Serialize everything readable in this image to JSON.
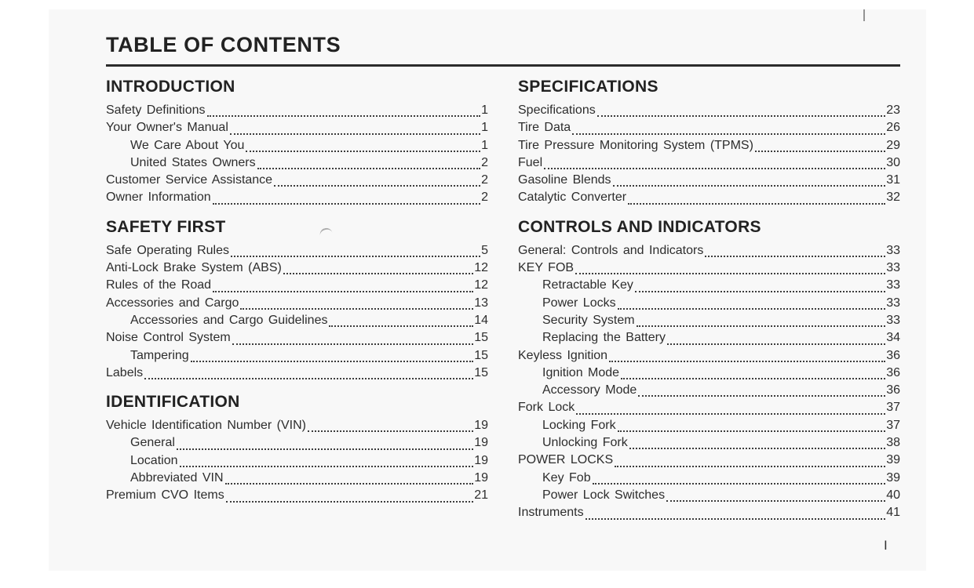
{
  "colors": {
    "paper": "#f8f8f8",
    "ink": "#262626",
    "rule": "#2b2b2b"
  },
  "page": {
    "title": "TABLE OF CONTENTS",
    "folio": "I"
  },
  "columns": [
    {
      "sections": [
        {
          "heading": "INTRODUCTION",
          "entries": [
            {
              "label": "Safety Definitions",
              "page": "1",
              "indent": 0
            },
            {
              "label": "Your Owner's Manual",
              "page": "1",
              "indent": 0
            },
            {
              "label": "We Care About You",
              "page": "1",
              "indent": 1
            },
            {
              "label": "United States Owners",
              "page": "2",
              "indent": 1
            },
            {
              "label": "Customer Service Assistance",
              "page": "2",
              "indent": 0
            },
            {
              "label": "Owner Information",
              "page": "2",
              "indent": 0
            }
          ]
        },
        {
          "heading": "SAFETY FIRST",
          "entries": [
            {
              "label": "Safe Operating Rules",
              "page": "5",
              "indent": 0
            },
            {
              "label": "Anti-Lock Brake System (ABS)",
              "page": "12",
              "indent": 0
            },
            {
              "label": "Rules of the Road",
              "page": "12",
              "indent": 0
            },
            {
              "label": "Accessories and Cargo",
              "page": "13",
              "indent": 0
            },
            {
              "label": "Accessories and Cargo Guidelines",
              "page": "14",
              "indent": 1
            },
            {
              "label": "Noise Control System",
              "page": "15",
              "indent": 0
            },
            {
              "label": "Tampering",
              "page": "15",
              "indent": 1
            },
            {
              "label": "Labels",
              "page": "15",
              "indent": 0
            }
          ]
        },
        {
          "heading": "IDENTIFICATION",
          "entries": [
            {
              "label": "Vehicle Identification Number (VIN)",
              "page": "19",
              "indent": 0
            },
            {
              "label": "General",
              "page": "19",
              "indent": 1
            },
            {
              "label": "Location",
              "page": "19",
              "indent": 1
            },
            {
              "label": "Abbreviated VIN",
              "page": "19",
              "indent": 1
            },
            {
              "label": "Premium CVO Items",
              "page": "21",
              "indent": 0
            }
          ]
        }
      ]
    },
    {
      "sections": [
        {
          "heading": "SPECIFICATIONS",
          "entries": [
            {
              "label": "Specifications",
              "page": "23",
              "indent": 0
            },
            {
              "label": "Tire Data",
              "page": "26",
              "indent": 0
            },
            {
              "label": "Tire Pressure Monitoring System (TPMS)",
              "page": "29",
              "indent": 0
            },
            {
              "label": "Fuel",
              "page": "30",
              "indent": 0
            },
            {
              "label": "Gasoline Blends",
              "page": "31",
              "indent": 0
            },
            {
              "label": "Catalytic Converter",
              "page": "32",
              "indent": 0
            }
          ]
        },
        {
          "heading": "CONTROLS AND INDICATORS",
          "entries": [
            {
              "label": "General: Controls and Indicators",
              "page": "33",
              "indent": 0
            },
            {
              "label": "KEY FOB",
              "page": "33",
              "indent": 0
            },
            {
              "label": "Retractable Key",
              "page": "33",
              "indent": 1
            },
            {
              "label": "Power Locks",
              "page": "33",
              "indent": 1
            },
            {
              "label": "Security System",
              "page": "33",
              "indent": 1
            },
            {
              "label": "Replacing the Battery",
              "page": "34",
              "indent": 1
            },
            {
              "label": "Keyless Ignition",
              "page": "36",
              "indent": 0
            },
            {
              "label": "Ignition Mode",
              "page": "36",
              "indent": 1
            },
            {
              "label": "Accessory Mode",
              "page": "36",
              "indent": 1
            },
            {
              "label": "Fork Lock",
              "page": "37",
              "indent": 0
            },
            {
              "label": "Locking Fork",
              "page": "37",
              "indent": 1
            },
            {
              "label": "Unlocking Fork",
              "page": "38",
              "indent": 1
            },
            {
              "label": "POWER LOCKS",
              "page": "39",
              "indent": 0
            },
            {
              "label": "Key Fob",
              "page": "39",
              "indent": 1
            },
            {
              "label": "Power Lock Switches",
              "page": "40",
              "indent": 1
            },
            {
              "label": "Instruments",
              "page": "41",
              "indent": 0
            }
          ]
        }
      ]
    }
  ]
}
